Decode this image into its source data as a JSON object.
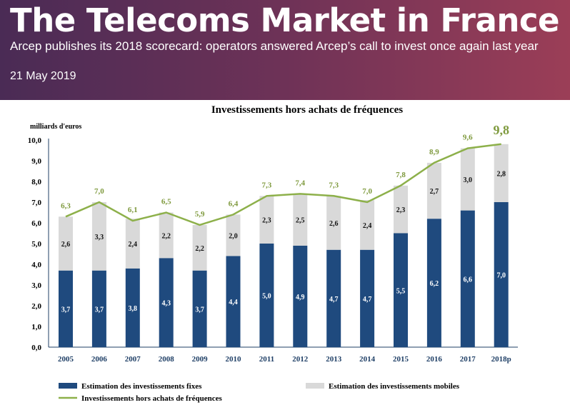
{
  "header": {
    "title": "The Telecoms Market in France",
    "subtitle": "Arcep publishes its 2018 scorecard: operators answered Arcep’s call to invest once again last year",
    "date": "21 May 2019"
  },
  "chart_data": {
    "type": "bar",
    "stacked": true,
    "title": "Investissements  hors achats de fréquences",
    "ylabel": "milliards d'euros",
    "xlabel": "",
    "ylim": [
      0,
      10
    ],
    "yticks": [
      "0,0",
      "1,0",
      "2,0",
      "3,0",
      "4,0",
      "5,0",
      "6,0",
      "7,0",
      "8,0",
      "9,0",
      "10,0"
    ],
    "grid": false,
    "legend_position": "bottom",
    "categories": [
      "2005",
      "2006",
      "2007",
      "2008",
      "2009",
      "2010",
      "2011",
      "2012",
      "2013",
      "2014",
      "2015",
      "2016",
      "2017",
      "2018p"
    ],
    "series": [
      {
        "name": "Estimation des investissements fixes",
        "kind": "bar",
        "color": "#1f4a7e",
        "values": [
          3.7,
          3.7,
          3.8,
          4.3,
          3.7,
          4.4,
          5.0,
          4.9,
          4.7,
          4.7,
          5.5,
          6.2,
          6.6,
          7.0
        ],
        "labels": [
          "3,7",
          "3,7",
          "3,8",
          "4,3",
          "3,7",
          "4,4",
          "5,0",
          "4,9",
          "4,7",
          "4,7",
          "5,5",
          "6,2",
          "6,6",
          "7,0"
        ]
      },
      {
        "name": "Estimation des investissements  mobiles",
        "kind": "bar",
        "color": "#d9d9d9",
        "values": [
          2.6,
          3.3,
          2.4,
          2.2,
          2.2,
          2.0,
          2.3,
          2.5,
          2.6,
          2.4,
          2.3,
          2.7,
          3.0,
          2.8
        ],
        "labels": [
          "2,6",
          "3,3",
          "2,4",
          "2,2",
          "2,2",
          "2,0",
          "2,3",
          "2,5",
          "2,6",
          "2,4",
          "2,3",
          "2,7",
          "3,0",
          "2,8"
        ]
      },
      {
        "name": "Investissements hors achats de fréquences",
        "kind": "line",
        "color": "#8db04a",
        "values": [
          6.3,
          7.0,
          6.1,
          6.5,
          5.9,
          6.4,
          7.3,
          7.4,
          7.3,
          7.0,
          7.8,
          8.9,
          9.6,
          9.8
        ],
        "labels": [
          "6,3",
          "7,0",
          "6,1",
          "6,5",
          "5,9",
          "6,4",
          "7,3",
          "7,4",
          "7,3",
          "7,0",
          "7,8",
          "8,9",
          "9,6",
          "9,8"
        ]
      }
    ]
  }
}
